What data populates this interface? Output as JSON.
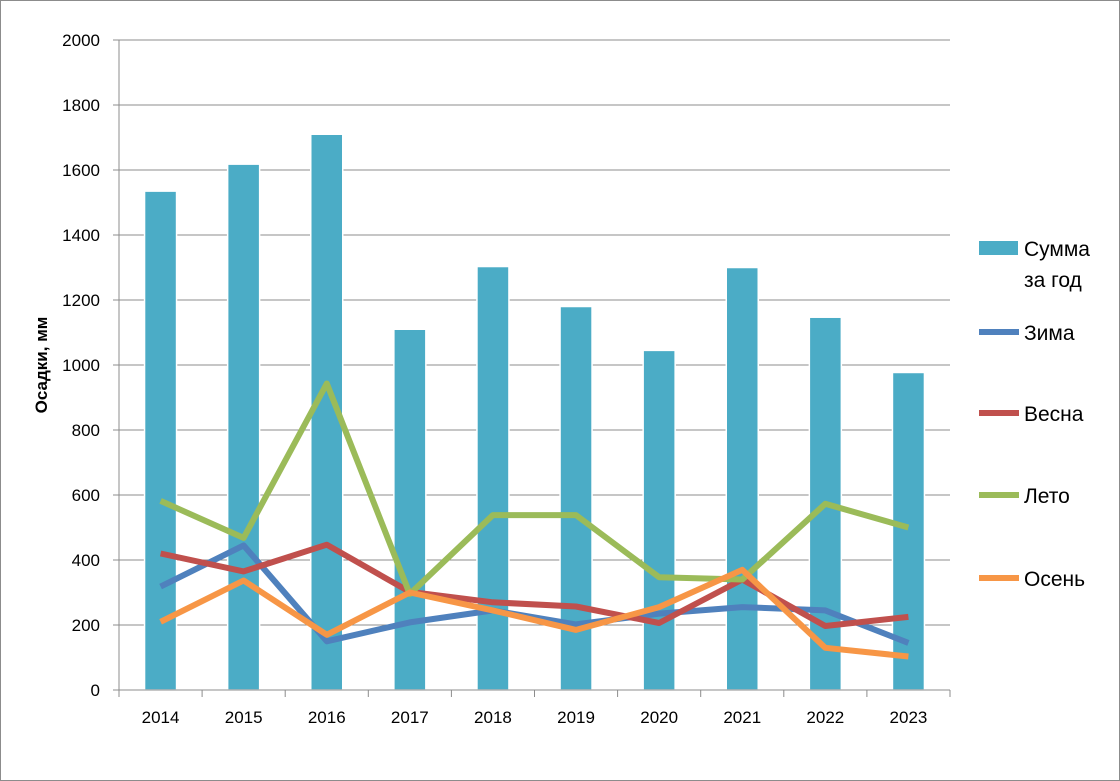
{
  "chart_data": {
    "type": "bar+line",
    "title": "",
    "xlabel": "",
    "ylabel": "Осадки, мм",
    "ylim": [
      0,
      2000
    ],
    "yticks": [
      "0",
      "200",
      "400",
      "600",
      "800",
      "1000",
      "1200",
      "1400",
      "1600",
      "1800",
      "2000"
    ],
    "categories": [
      "2014",
      "2015",
      "2016",
      "2017",
      "2018",
      "2019",
      "2020",
      "2021",
      "2022",
      "2023"
    ],
    "grid": "horizontal",
    "legend_position": "right",
    "series": [
      {
        "name": "Сумма за год",
        "kind": "bar",
        "color": "#4BACC6",
        "values": [
          1535,
          1618,
          1710,
          1110,
          1303,
          1180,
          1045,
          1300,
          1147,
          977
        ]
      },
      {
        "name": "Зима",
        "kind": "line",
        "color": "#4F81BD",
        "values": [
          318,
          445,
          150,
          208,
          245,
          202,
          235,
          255,
          245,
          145
        ]
      },
      {
        "name": "Весна",
        "kind": "line",
        "color": "#C0504D",
        "values": [
          420,
          365,
          447,
          302,
          270,
          257,
          206,
          340,
          197,
          225
        ]
      },
      {
        "name": "Лето",
        "kind": "line",
        "color": "#9BBB59",
        "values": [
          582,
          468,
          943,
          295,
          538,
          538,
          347,
          340,
          573,
          500
        ]
      },
      {
        "name": "Осень",
        "kind": "line",
        "color": "#F79646",
        "values": [
          210,
          337,
          170,
          300,
          245,
          185,
          255,
          370,
          130,
          103
        ]
      }
    ],
    "legend_lines": [
      [
        "Сумма",
        "за год"
      ],
      [
        "Зима"
      ],
      [
        "Весна"
      ],
      [
        "Лето"
      ],
      [
        "Осень"
      ]
    ]
  }
}
